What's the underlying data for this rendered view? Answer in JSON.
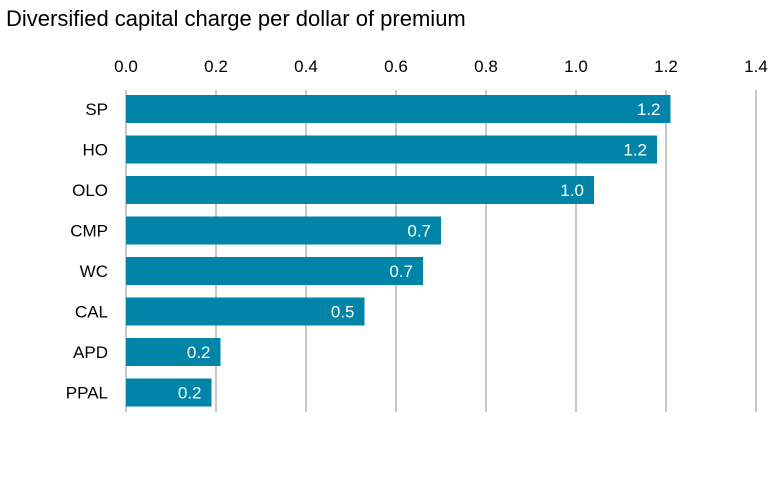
{
  "chart_data": {
    "type": "bar",
    "orientation": "horizontal",
    "title": "Diversified capital charge per dollar of premium",
    "xlabel": "",
    "ylabel": "",
    "categories": [
      "SP",
      "HO",
      "OLO",
      "CMP",
      "WC",
      "CAL",
      "APD",
      "PPAL"
    ],
    "values": [
      1.21,
      1.18,
      1.04,
      0.7,
      0.66,
      0.53,
      0.21,
      0.19
    ],
    "data_labels": [
      "1.2",
      "1.2",
      "1.0",
      "0.7",
      "0.7",
      "0.5",
      "0.2",
      "0.2"
    ],
    "xlim": [
      0,
      1.4
    ],
    "xticks": [
      "0.0",
      "0.2",
      "0.4",
      "0.6",
      "0.8",
      "1.0",
      "1.2",
      "1.4"
    ],
    "x_axis_position": "top",
    "grid": "vertical",
    "legend": "none",
    "bar_color": "#0085A9",
    "grid_color": "#C8C8C8"
  }
}
